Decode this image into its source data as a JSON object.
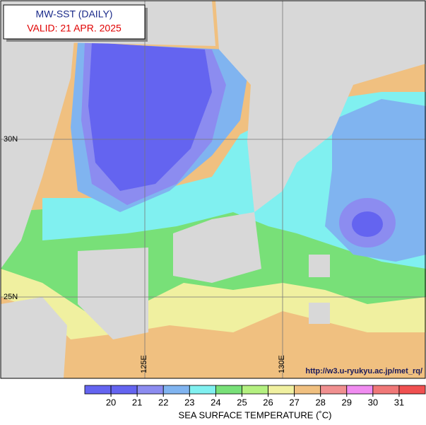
{
  "header": {
    "title": "MW-SST (DAILY)",
    "valid": "VALID: 21 APR. 2025"
  },
  "map": {
    "lat_labels": [
      "30N",
      "25N"
    ],
    "lon_labels": [
      "125E",
      "130E"
    ],
    "credit": "http://w3.u-ryukyu.ac.jp/met_rq/"
  },
  "colorbar": {
    "label": "SEA SURFACE TEMPERATURE (˚C)",
    "ticks": [
      20,
      21,
      22,
      23,
      24,
      25,
      26,
      27,
      28,
      29,
      30,
      31
    ],
    "colors": [
      "#6464f0",
      "#8c8cf0",
      "#80b4f0",
      "#80f0f0",
      "#78e078",
      "#b4f080",
      "#f0f0a0",
      "#f0c080",
      "#f09090",
      "#f08cf0",
      "#f07878",
      "#f05050"
    ]
  }
}
